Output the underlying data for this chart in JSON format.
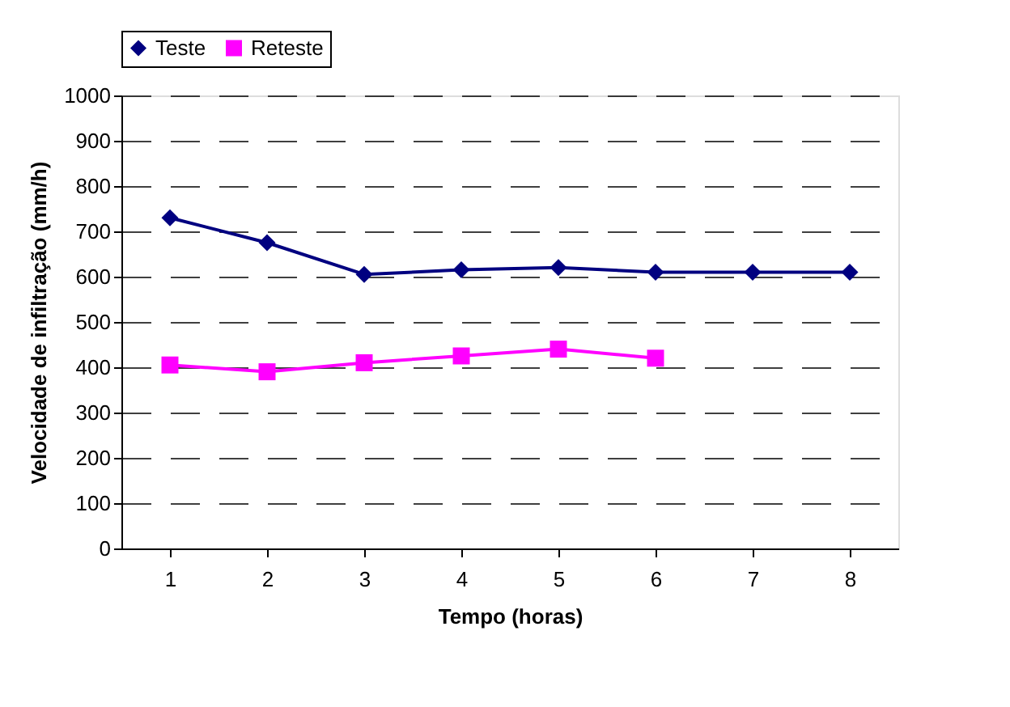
{
  "chart_data": {
    "type": "line",
    "xlabel": "Tempo (horas)",
    "ylabel": "Velocidade de infiltração (mm/h)",
    "categories": [
      "1",
      "2",
      "3",
      "4",
      "5",
      "6",
      "7",
      "8"
    ],
    "series": [
      {
        "name": "Teste",
        "color": "#000080",
        "marker": "diamond",
        "values": [
          730,
          675,
          605,
          615,
          620,
          610,
          610,
          610
        ]
      },
      {
        "name": "Reteste",
        "color": "#ff00ff",
        "marker": "square",
        "values": [
          405,
          390,
          410,
          425,
          440,
          420,
          null,
          null
        ]
      }
    ],
    "ylim": [
      0,
      1000
    ],
    "yticks": [
      0,
      100,
      200,
      300,
      400,
      500,
      600,
      700,
      800,
      900,
      1000
    ],
    "grid": "y",
    "legend": "top",
    "line_style": "solid"
  }
}
